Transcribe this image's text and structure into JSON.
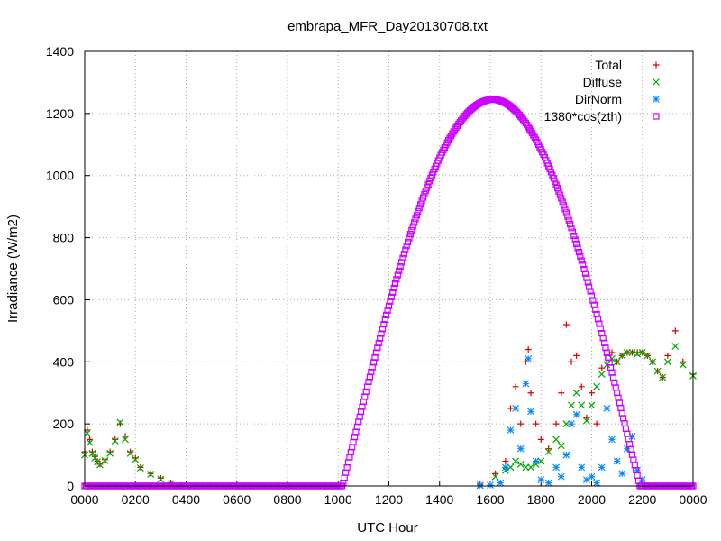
{
  "chart_data": {
    "type": "scatter",
    "title": "embrapa_MFR_Day20130708.txt",
    "xlabel": "UTC Hour",
    "ylabel": "Irradiance (W/m2)",
    "xlim": [
      0,
      24
    ],
    "ylim": [
      0,
      1400
    ],
    "x_tick_values": [
      0,
      2,
      4,
      6,
      8,
      10,
      12,
      14,
      16,
      18,
      20,
      22,
      24
    ],
    "x_tick_labels": [
      "0000",
      "0200",
      "0400",
      "0600",
      "0800",
      "1000",
      "1200",
      "1400",
      "1600",
      "1800",
      "2000",
      "2200",
      "0000"
    ],
    "y_ticks": [
      0,
      200,
      400,
      600,
      800,
      1000,
      1200,
      1400
    ],
    "grid": true,
    "legend_position": "top-right",
    "series": [
      {
        "name": "Total",
        "color": "#dd0000",
        "marker": "plus",
        "points": [
          [
            0,
            110
          ],
          [
            0.1,
            180
          ],
          [
            0.2,
            150
          ],
          [
            0.3,
            110
          ],
          [
            0.4,
            95
          ],
          [
            0.5,
            80
          ],
          [
            0.6,
            70
          ],
          [
            0.8,
            85
          ],
          [
            1.0,
            110
          ],
          [
            1.2,
            150
          ],
          [
            1.4,
            200
          ],
          [
            1.6,
            160
          ],
          [
            1.8,
            110
          ],
          [
            2.0,
            90
          ],
          [
            2.2,
            60
          ],
          [
            2.6,
            40
          ],
          [
            3.0,
            25
          ],
          [
            3.4,
            10
          ],
          [
            3.8,
            2
          ],
          [
            15.6,
            5
          ],
          [
            16.2,
            40
          ],
          [
            16.6,
            80
          ],
          [
            16.8,
            250
          ],
          [
            17.0,
            320
          ],
          [
            17.2,
            200
          ],
          [
            17.4,
            400
          ],
          [
            17.5,
            440
          ],
          [
            17.6,
            300
          ],
          [
            17.8,
            200
          ],
          [
            18.0,
            150
          ],
          [
            18.3,
            120
          ],
          [
            18.6,
            200
          ],
          [
            18.8,
            300
          ],
          [
            19.0,
            520
          ],
          [
            19.2,
            400
          ],
          [
            19.4,
            420
          ],
          [
            19.6,
            320
          ],
          [
            19.8,
            220
          ],
          [
            20.0,
            300
          ],
          [
            20.2,
            200
          ],
          [
            20.4,
            380
          ],
          [
            20.6,
            420
          ],
          [
            20.8,
            430
          ],
          [
            21.0,
            400
          ],
          [
            21.2,
            420
          ],
          [
            21.4,
            430
          ],
          [
            21.6,
            430
          ],
          [
            21.8,
            430
          ],
          [
            22.0,
            430
          ],
          [
            22.2,
            420
          ],
          [
            22.4,
            400
          ],
          [
            22.6,
            370
          ],
          [
            22.8,
            350
          ],
          [
            23.0,
            420
          ],
          [
            23.3,
            500
          ],
          [
            23.6,
            400
          ],
          [
            24.0,
            360
          ]
        ]
      },
      {
        "name": "Diffuse",
        "color": "#00aa00",
        "marker": "cross",
        "points": [
          [
            0,
            100
          ],
          [
            0.1,
            170
          ],
          [
            0.2,
            140
          ],
          [
            0.3,
            105
          ],
          [
            0.4,
            90
          ],
          [
            0.5,
            78
          ],
          [
            0.6,
            68
          ],
          [
            0.8,
            82
          ],
          [
            1.0,
            105
          ],
          [
            1.2,
            145
          ],
          [
            1.4,
            205
          ],
          [
            1.6,
            150
          ],
          [
            1.8,
            105
          ],
          [
            2.0,
            85
          ],
          [
            2.2,
            58
          ],
          [
            2.6,
            38
          ],
          [
            3.0,
            22
          ],
          [
            3.4,
            8
          ],
          [
            3.8,
            1
          ],
          [
            15.6,
            2
          ],
          [
            16.2,
            30
          ],
          [
            16.6,
            50
          ],
          [
            16.8,
            60
          ],
          [
            17.0,
            80
          ],
          [
            17.2,
            70
          ],
          [
            17.4,
            60
          ],
          [
            17.6,
            60
          ],
          [
            17.8,
            70
          ],
          [
            18.0,
            80
          ],
          [
            18.3,
            110
          ],
          [
            18.6,
            150
          ],
          [
            18.8,
            130
          ],
          [
            19.0,
            200
          ],
          [
            19.2,
            260
          ],
          [
            19.4,
            300
          ],
          [
            19.6,
            260
          ],
          [
            19.8,
            210
          ],
          [
            20.0,
            260
          ],
          [
            20.2,
            320
          ],
          [
            20.4,
            360
          ],
          [
            20.6,
            390
          ],
          [
            20.8,
            410
          ],
          [
            21.0,
            400
          ],
          [
            21.2,
            420
          ],
          [
            21.4,
            430
          ],
          [
            21.6,
            430
          ],
          [
            21.8,
            425
          ],
          [
            22.0,
            430
          ],
          [
            22.2,
            420
          ],
          [
            22.4,
            400
          ],
          [
            22.6,
            370
          ],
          [
            22.8,
            350
          ],
          [
            23.0,
            400
          ],
          [
            23.3,
            450
          ],
          [
            23.6,
            390
          ],
          [
            24.0,
            355
          ]
        ]
      },
      {
        "name": "DirNorm",
        "color": "#0088ff",
        "marker": "star",
        "points": [
          [
            15.6,
            2
          ],
          [
            16.0,
            3
          ],
          [
            16.4,
            10
          ],
          [
            16.6,
            60
          ],
          [
            16.8,
            180
          ],
          [
            17.0,
            250
          ],
          [
            17.2,
            120
          ],
          [
            17.4,
            330
          ],
          [
            17.5,
            410
          ],
          [
            17.6,
            240
          ],
          [
            17.8,
            80
          ],
          [
            18.0,
            20
          ],
          [
            18.3,
            10
          ],
          [
            18.6,
            60
          ],
          [
            18.8,
            30
          ],
          [
            19.0,
            100
          ],
          [
            19.2,
            200
          ],
          [
            19.4,
            230
          ],
          [
            19.6,
            60
          ],
          [
            19.8,
            20
          ],
          [
            20.0,
            30
          ],
          [
            20.2,
            10
          ],
          [
            20.4,
            60
          ],
          [
            20.6,
            250
          ],
          [
            20.8,
            150
          ],
          [
            21.0,
            80
          ],
          [
            21.2,
            40
          ],
          [
            21.4,
            120
          ],
          [
            21.6,
            160
          ],
          [
            21.8,
            50
          ],
          [
            22.0,
            20
          ]
        ]
      },
      {
        "name": "1380*cos(zth)",
        "color": "#cc00ff",
        "marker": "square",
        "curve": {
          "sunrise_hour": 10.17,
          "sunset_hour": 21.9,
          "noon_hour": 16.1,
          "peak": 1245
        }
      }
    ]
  }
}
